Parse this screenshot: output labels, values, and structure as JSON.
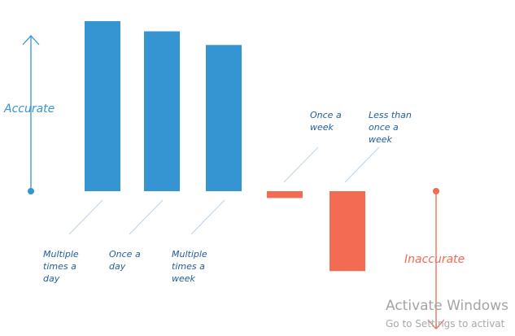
{
  "chart_data": {
    "type": "bar",
    "categories": [
      "Multiple times a day",
      "Once a day",
      "Multiple times a week",
      "Once a week",
      "Less than once a week"
    ],
    "values": [
      100,
      94,
      86,
      -4,
      -47
    ],
    "colors": [
      "#3595d3",
      "#3595d3",
      "#3595d3",
      "#f26b52",
      "#f26b52"
    ],
    "ylim": [
      -47,
      100
    ],
    "grid": false,
    "annotations": {
      "positive": "Accurate",
      "negative": "Inaccurate"
    },
    "axis_colors": {
      "positive": "#3595d3",
      "negative": "#f26b52"
    },
    "label_color": "#1f5c99"
  },
  "watermark": {
    "title": "Activate Windows",
    "subtitle": "Go to Settings to activat"
  }
}
